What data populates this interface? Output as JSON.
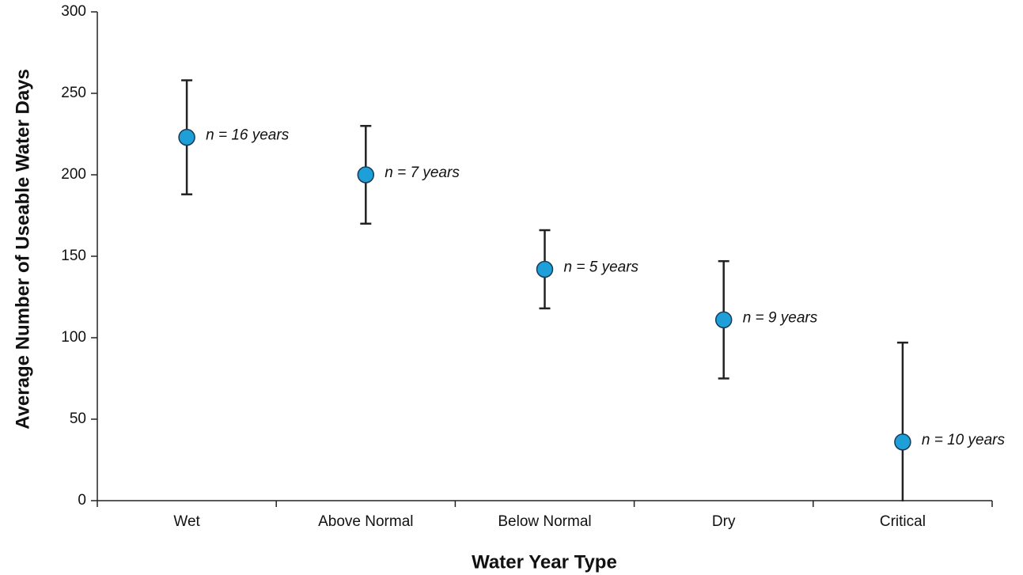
{
  "chart_data": {
    "type": "errorbar",
    "x_label": "Water Year Type",
    "y_label": "Average Number of Useable Water Days",
    "categories": [
      "Wet",
      "Above Normal",
      "Below Normal",
      "Dry",
      "Critical"
    ],
    "values": [
      223,
      200,
      142,
      111,
      36
    ],
    "errors": [
      35,
      30,
      24,
      36,
      61
    ],
    "annotations": [
      "n = 16 years",
      "n = 7 years",
      "n = 5 years",
      "n = 9 years",
      "n = 10 years"
    ],
    "color": "#1e9fd8",
    "ylim": [
      0,
      300
    ],
    "yticks": [
      0,
      50,
      100,
      150,
      200,
      250,
      300
    ]
  }
}
